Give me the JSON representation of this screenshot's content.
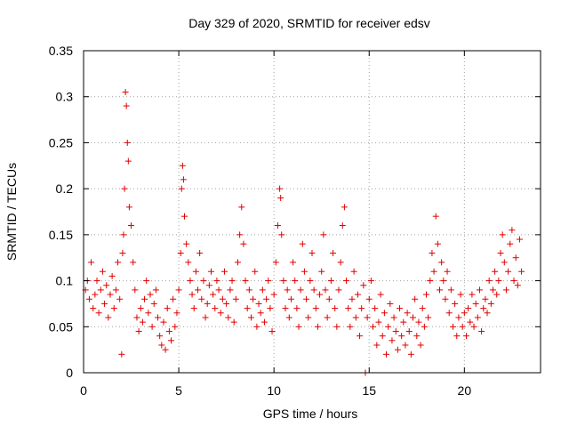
{
  "chart_data": {
    "type": "scatter",
    "title": "Day 329 of 2020, SRMTID for receiver edsv",
    "xlabel": "GPS time / hours",
    "ylabel": "SRMTID / TECUs",
    "xlim": [
      0,
      24
    ],
    "ylim": [
      0,
      0.35
    ],
    "xticks": [
      0,
      5,
      10,
      15,
      20
    ],
    "xtick_labels": [
      "0",
      "5",
      "10",
      "15",
      "20"
    ],
    "yticks": [
      0,
      0.05,
      0.1,
      0.15,
      0.2,
      0.25,
      0.3,
      0.35
    ],
    "ytick_labels": [
      "0",
      "0.05",
      "0.1",
      "0.15",
      "0.2",
      "0.25",
      "0.3",
      "0.35"
    ],
    "grid": true,
    "marker": "+",
    "color": "#e00000",
    "series": [
      {
        "name": "SRMTID",
        "points": [
          [
            0.1,
            0.09
          ],
          [
            0.2,
            0.1
          ],
          [
            0.3,
            0.08
          ],
          [
            0.4,
            0.12
          ],
          [
            0.5,
            0.07
          ],
          [
            0.6,
            0.085
          ],
          [
            0.7,
            0.1
          ],
          [
            0.8,
            0.065
          ],
          [
            0.9,
            0.09
          ],
          [
            1.0,
            0.11
          ],
          [
            1.1,
            0.075
          ],
          [
            1.2,
            0.095
          ],
          [
            1.3,
            0.06
          ],
          [
            1.4,
            0.085
          ],
          [
            1.5,
            0.105
          ],
          [
            1.6,
            0.07
          ],
          [
            1.7,
            0.09
          ],
          [
            1.8,
            0.12
          ],
          [
            1.9,
            0.08
          ],
          [
            2.0,
            0.02
          ],
          [
            2.05,
            0.13
          ],
          [
            2.1,
            0.15
          ],
          [
            2.15,
            0.2
          ],
          [
            2.2,
            0.305
          ],
          [
            2.25,
            0.29
          ],
          [
            2.3,
            0.25
          ],
          [
            2.35,
            0.23
          ],
          [
            2.4,
            0.18
          ],
          [
            2.5,
            0.16
          ],
          [
            2.6,
            0.12
          ],
          [
            2.7,
            0.09
          ],
          [
            2.8,
            0.06
          ],
          [
            2.9,
            0.045
          ],
          [
            3.0,
            0.07
          ],
          [
            3.1,
            0.055
          ],
          [
            3.2,
            0.08
          ],
          [
            3.3,
            0.1
          ],
          [
            3.4,
            0.065
          ],
          [
            3.5,
            0.085
          ],
          [
            3.6,
            0.05
          ],
          [
            3.7,
            0.075
          ],
          [
            3.8,
            0.09
          ],
          [
            3.9,
            0.06
          ],
          [
            4.0,
            0.04
          ],
          [
            4.1,
            0.03
          ],
          [
            4.2,
            0.055
          ],
          [
            4.3,
            0.025
          ],
          [
            4.4,
            0.07
          ],
          [
            4.5,
            0.045
          ],
          [
            4.6,
            0.035
          ],
          [
            4.7,
            0.08
          ],
          [
            4.8,
            0.05
          ],
          [
            4.9,
            0.065
          ],
          [
            5.0,
            0.09
          ],
          [
            5.1,
            0.13
          ],
          [
            5.15,
            0.2
          ],
          [
            5.2,
            0.225
          ],
          [
            5.25,
            0.21
          ],
          [
            5.3,
            0.17
          ],
          [
            5.4,
            0.14
          ],
          [
            5.5,
            0.12
          ],
          [
            5.6,
            0.1
          ],
          [
            5.7,
            0.085
          ],
          [
            5.8,
            0.07
          ],
          [
            5.9,
            0.11
          ],
          [
            6.0,
            0.09
          ],
          [
            6.1,
            0.13
          ],
          [
            6.2,
            0.08
          ],
          [
            6.3,
            0.1
          ],
          [
            6.4,
            0.06
          ],
          [
            6.5,
            0.075
          ],
          [
            6.6,
            0.095
          ],
          [
            6.7,
            0.11
          ],
          [
            6.8,
            0.085
          ],
          [
            6.9,
            0.07
          ],
          [
            7.0,
            0.1
          ],
          [
            7.1,
            0.09
          ],
          [
            7.2,
            0.065
          ],
          [
            7.3,
            0.08
          ],
          [
            7.4,
            0.11
          ],
          [
            7.5,
            0.075
          ],
          [
            7.6,
            0.06
          ],
          [
            7.7,
            0.09
          ],
          [
            7.8,
            0.1
          ],
          [
            7.9,
            0.055
          ],
          [
            8.0,
            0.08
          ],
          [
            8.1,
            0.12
          ],
          [
            8.2,
            0.15
          ],
          [
            8.3,
            0.18
          ],
          [
            8.4,
            0.14
          ],
          [
            8.5,
            0.1
          ],
          [
            8.6,
            0.07
          ],
          [
            8.7,
            0.09
          ],
          [
            8.8,
            0.06
          ],
          [
            8.9,
            0.08
          ],
          [
            9.0,
            0.11
          ],
          [
            9.1,
            0.05
          ],
          [
            9.2,
            0.075
          ],
          [
            9.3,
            0.065
          ],
          [
            9.4,
            0.09
          ],
          [
            9.5,
            0.055
          ],
          [
            9.6,
            0.08
          ],
          [
            9.7,
            0.1
          ],
          [
            9.8,
            0.07
          ],
          [
            9.9,
            0.045
          ],
          [
            10.0,
            0.085
          ],
          [
            10.1,
            0.12
          ],
          [
            10.2,
            0.16
          ],
          [
            10.3,
            0.2
          ],
          [
            10.35,
            0.19
          ],
          [
            10.4,
            0.15
          ],
          [
            10.5,
            0.1
          ],
          [
            10.6,
            0.07
          ],
          [
            10.7,
            0.09
          ],
          [
            10.8,
            0.06
          ],
          [
            10.9,
            0.08
          ],
          [
            11.0,
            0.12
          ],
          [
            11.1,
            0.1
          ],
          [
            11.2,
            0.07
          ],
          [
            11.3,
            0.05
          ],
          [
            11.4,
            0.09
          ],
          [
            11.5,
            0.14
          ],
          [
            11.6,
            0.11
          ],
          [
            11.7,
            0.08
          ],
          [
            11.8,
            0.06
          ],
          [
            11.9,
            0.1
          ],
          [
            12.0,
            0.13
          ],
          [
            12.1,
            0.09
          ],
          [
            12.2,
            0.07
          ],
          [
            12.3,
            0.05
          ],
          [
            12.4,
            0.085
          ],
          [
            12.5,
            0.11
          ],
          [
            12.6,
            0.15
          ],
          [
            12.7,
            0.09
          ],
          [
            12.8,
            0.06
          ],
          [
            12.9,
            0.08
          ],
          [
            13.0,
            0.1
          ],
          [
            13.1,
            0.13
          ],
          [
            13.2,
            0.07
          ],
          [
            13.3,
            0.05
          ],
          [
            13.4,
            0.09
          ],
          [
            13.5,
            0.12
          ],
          [
            13.6,
            0.16
          ],
          [
            13.7,
            0.18
          ],
          [
            13.8,
            0.1
          ],
          [
            13.9,
            0.07
          ],
          [
            14.0,
            0.05
          ],
          [
            14.1,
            0.08
          ],
          [
            14.2,
            0.11
          ],
          [
            14.3,
            0.06
          ],
          [
            14.4,
            0.085
          ],
          [
            14.5,
            0.04
          ],
          [
            14.6,
            0.07
          ],
          [
            14.7,
            0.095
          ],
          [
            14.8,
            0.0
          ],
          [
            14.9,
            0.06
          ],
          [
            15.0,
            0.08
          ],
          [
            15.1,
            0.1
          ],
          [
            15.2,
            0.05
          ],
          [
            15.3,
            0.07
          ],
          [
            15.4,
            0.03
          ],
          [
            15.5,
            0.055
          ],
          [
            15.6,
            0.085
          ],
          [
            15.7,
            0.04
          ],
          [
            15.8,
            0.065
          ],
          [
            15.9,
            0.02
          ],
          [
            16.0,
            0.05
          ],
          [
            16.1,
            0.075
          ],
          [
            16.2,
            0.035
          ],
          [
            16.3,
            0.06
          ],
          [
            16.4,
            0.045
          ],
          [
            16.5,
            0.025
          ],
          [
            16.6,
            0.07
          ],
          [
            16.7,
            0.04
          ],
          [
            16.8,
            0.055
          ],
          [
            16.9,
            0.03
          ],
          [
            17.0,
            0.065
          ],
          [
            17.1,
            0.045
          ],
          [
            17.2,
            0.02
          ],
          [
            17.3,
            0.06
          ],
          [
            17.4,
            0.08
          ],
          [
            17.5,
            0.04
          ],
          [
            17.6,
            0.055
          ],
          [
            17.7,
            0.03
          ],
          [
            17.8,
            0.07
          ],
          [
            17.9,
            0.05
          ],
          [
            18.0,
            0.085
          ],
          [
            18.1,
            0.06
          ],
          [
            18.2,
            0.1
          ],
          [
            18.3,
            0.13
          ],
          [
            18.4,
            0.11
          ],
          [
            18.5,
            0.17
          ],
          [
            18.6,
            0.14
          ],
          [
            18.7,
            0.09
          ],
          [
            18.8,
            0.12
          ],
          [
            18.9,
            0.1
          ],
          [
            19.0,
            0.08
          ],
          [
            19.1,
            0.11
          ],
          [
            19.2,
            0.065
          ],
          [
            19.3,
            0.09
          ],
          [
            19.4,
            0.05
          ],
          [
            19.5,
            0.075
          ],
          [
            19.6,
            0.04
          ],
          [
            19.7,
            0.06
          ],
          [
            19.8,
            0.085
          ],
          [
            19.9,
            0.05
          ],
          [
            20.0,
            0.065
          ],
          [
            20.1,
            0.04
          ],
          [
            20.2,
            0.07
          ],
          [
            20.3,
            0.055
          ],
          [
            20.4,
            0.085
          ],
          [
            20.5,
            0.05
          ],
          [
            20.6,
            0.075
          ],
          [
            20.7,
            0.06
          ],
          [
            20.8,
            0.09
          ],
          [
            20.9,
            0.045
          ],
          [
            21.0,
            0.07
          ],
          [
            21.1,
            0.08
          ],
          [
            21.2,
            0.065
          ],
          [
            21.3,
            0.1
          ],
          [
            21.4,
            0.075
          ],
          [
            21.5,
            0.09
          ],
          [
            21.6,
            0.11
          ],
          [
            21.7,
            0.085
          ],
          [
            21.8,
            0.1
          ],
          [
            21.9,
            0.13
          ],
          [
            22.0,
            0.15
          ],
          [
            22.1,
            0.12
          ],
          [
            22.2,
            0.09
          ],
          [
            22.3,
            0.11
          ],
          [
            22.4,
            0.14
          ],
          [
            22.5,
            0.155
          ],
          [
            22.6,
            0.1
          ],
          [
            22.7,
            0.125
          ],
          [
            22.8,
            0.095
          ],
          [
            22.9,
            0.145
          ],
          [
            23.0,
            0.11
          ]
        ]
      }
    ]
  }
}
